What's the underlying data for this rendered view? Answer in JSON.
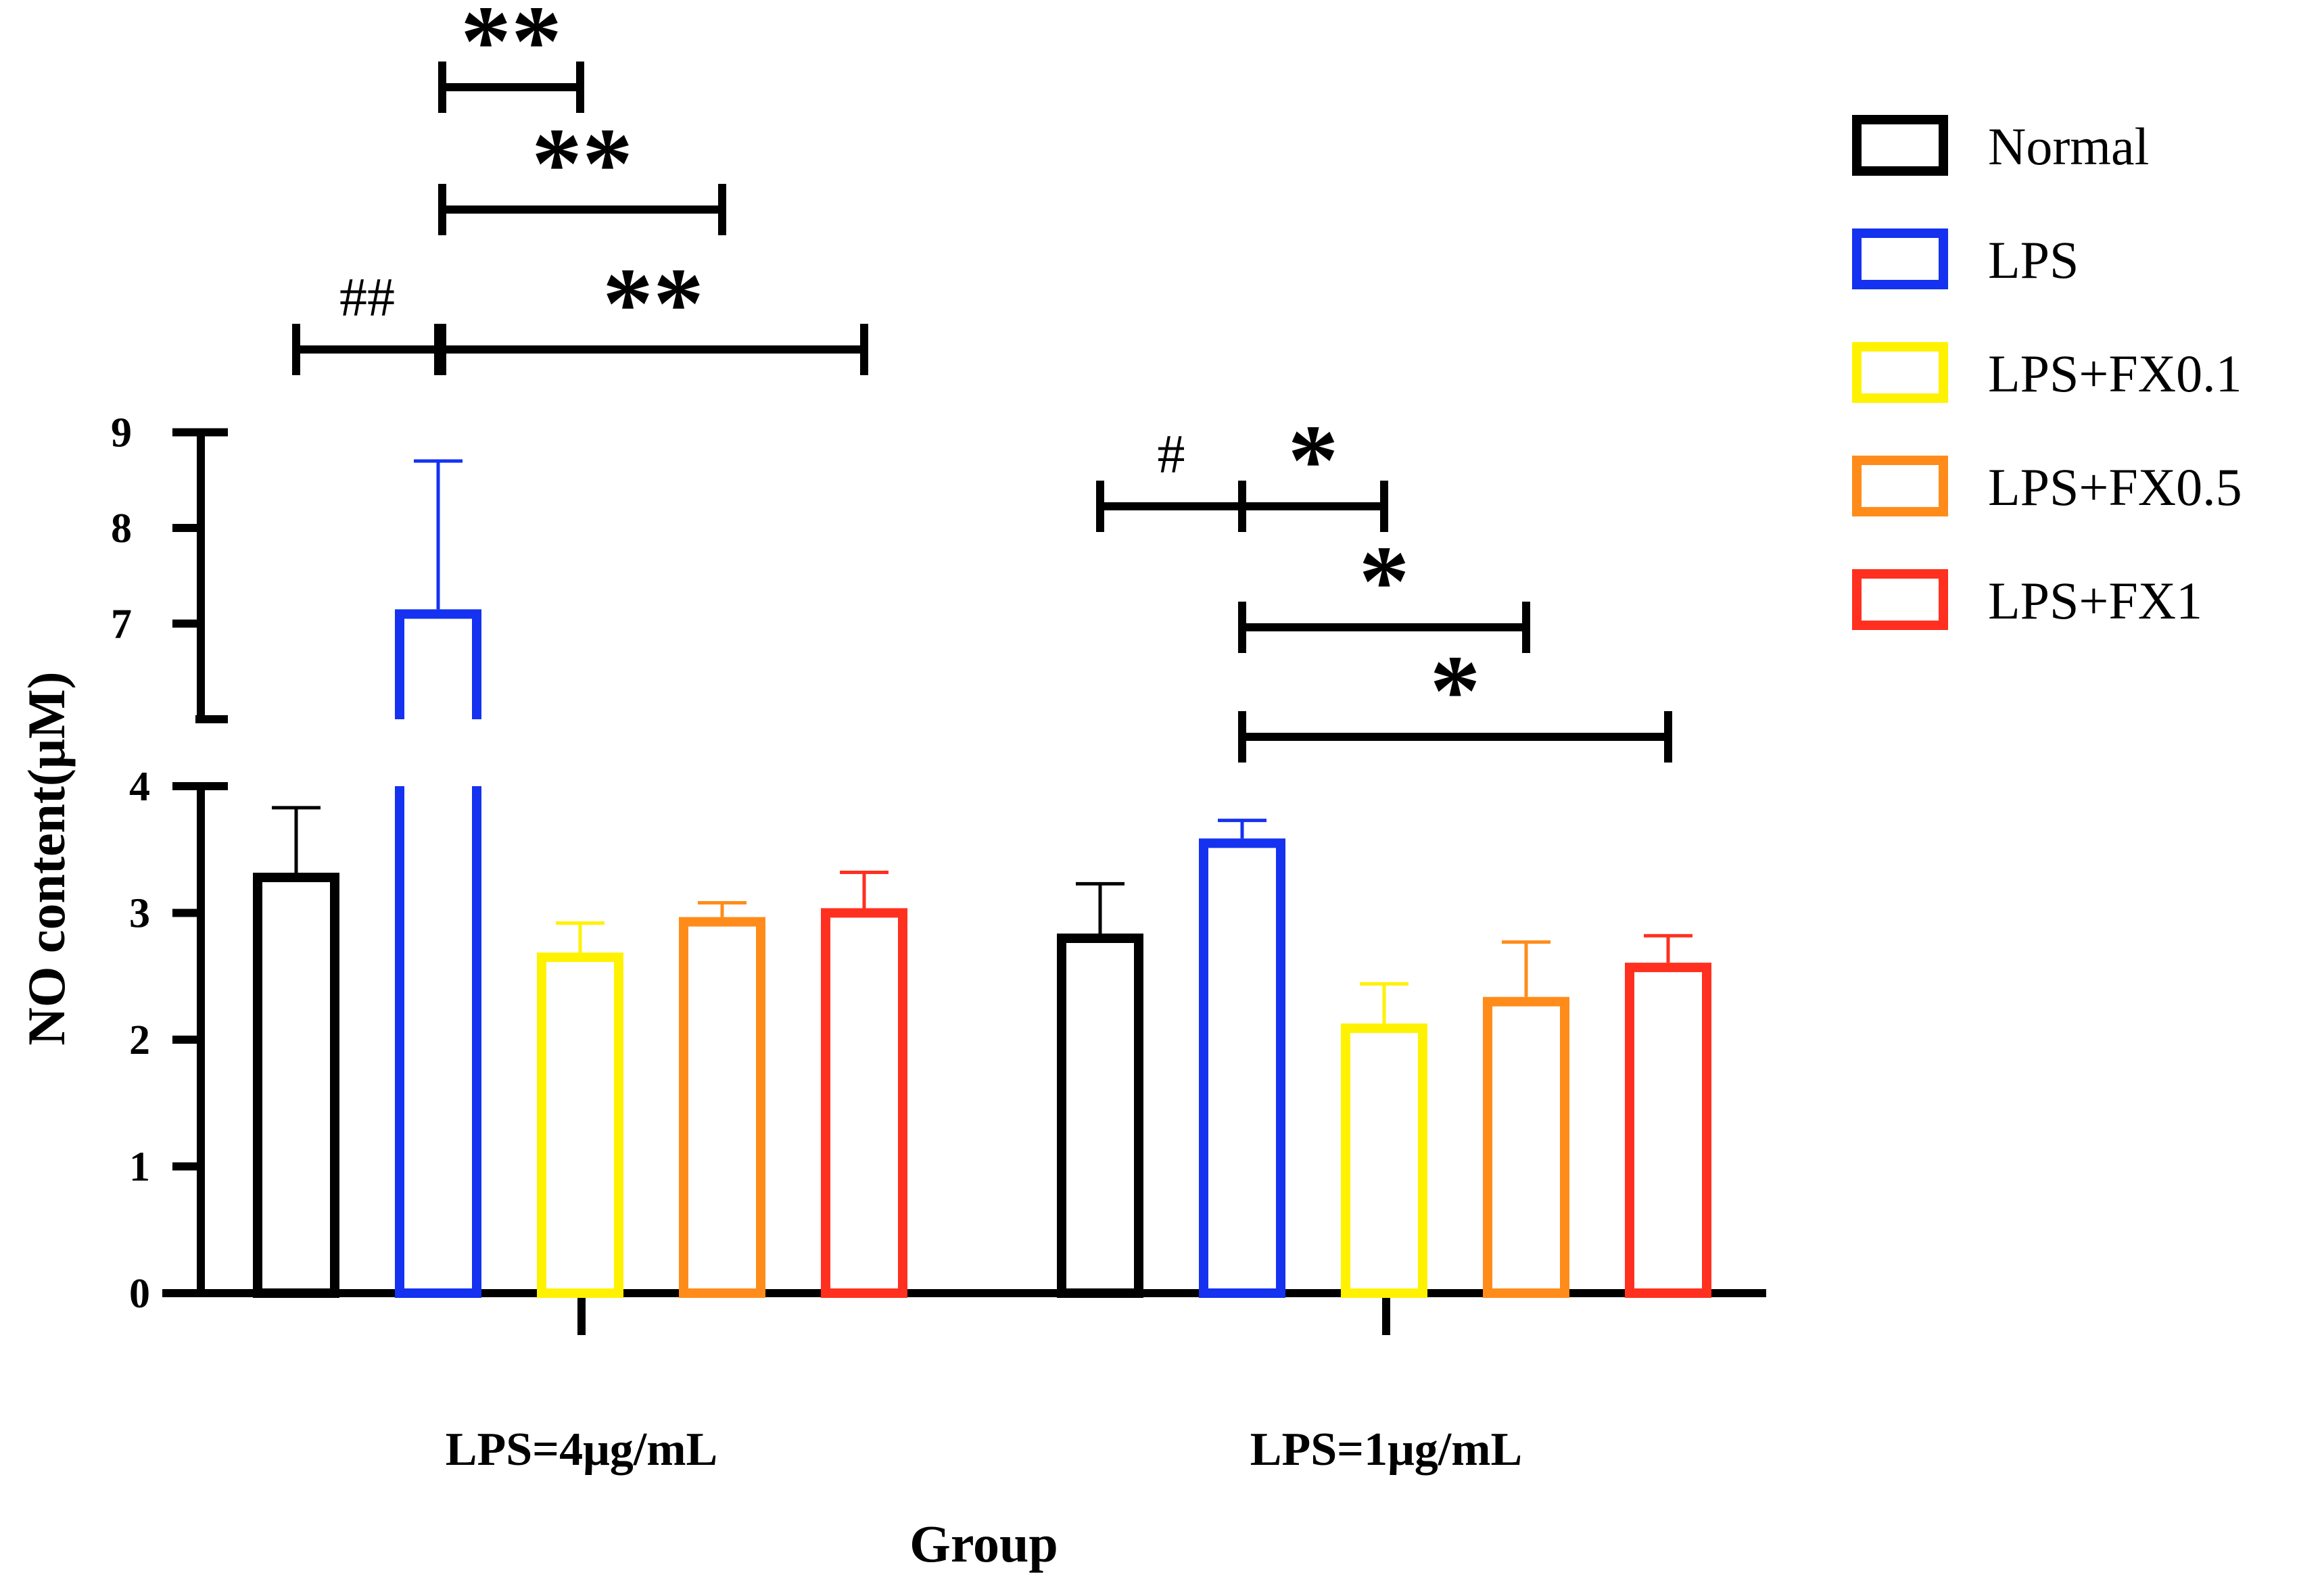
{
  "chart_data": {
    "type": "bar",
    "ylabel": "NO content(μM)",
    "xlabel": "Group",
    "categories": [
      "LPS=4μg/mL",
      "LPS=1μg/mL"
    ],
    "y_axis_break": {
      "lower_range": [
        0,
        4
      ],
      "upper_range": [
        6,
        9
      ]
    },
    "lower_ticks": [
      "0",
      "1",
      "2",
      "3",
      "4"
    ],
    "upper_ticks": [
      "7",
      "8",
      "9"
    ],
    "series": [
      {
        "name": "Normal",
        "color": "#000000",
        "values": [
          3.28,
          2.8
        ],
        "errors": [
          0.55,
          0.43
        ]
      },
      {
        "name": "LPS",
        "color": "#1432F0",
        "values": [
          7.1,
          3.55
        ],
        "errors": [
          1.6,
          0.18
        ]
      },
      {
        "name": "LPS+FX0.1",
        "color": "#FFF200",
        "values": [
          2.65,
          2.09
        ],
        "errors": [
          0.27,
          0.35
        ]
      },
      {
        "name": "LPS+FX0.5",
        "color": "#FF8C1A",
        "values": [
          2.93,
          2.3
        ],
        "errors": [
          0.15,
          0.47
        ]
      },
      {
        "name": "LPS+FX1",
        "color": "#FF3020",
        "values": [
          3.0,
          2.57
        ],
        "errors": [
          0.32,
          0.25
        ]
      }
    ],
    "significance": [
      {
        "group": 0,
        "from": 0,
        "to": 1,
        "label": "##"
      },
      {
        "group": 0,
        "from": 1,
        "to": 4,
        "label": "**"
      },
      {
        "group": 0,
        "from": 1,
        "to": 3,
        "label": "**"
      },
      {
        "group": 0,
        "from": 1,
        "to": 2,
        "label": "**"
      },
      {
        "group": 1,
        "from": 0,
        "to": 1,
        "label": "#"
      },
      {
        "group": 1,
        "from": 1,
        "to": 2,
        "label": "*"
      },
      {
        "group": 1,
        "from": 1,
        "to": 3,
        "label": "*"
      },
      {
        "group": 1,
        "from": 1,
        "to": 4,
        "label": "*"
      }
    ]
  }
}
